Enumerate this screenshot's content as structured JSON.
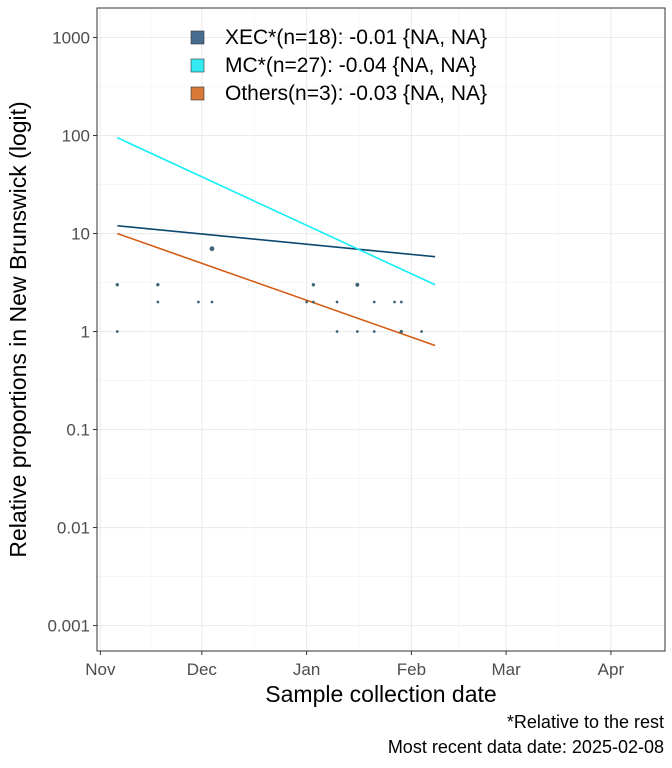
{
  "chart_data": {
    "type": "scatter",
    "xlabel": "Sample collection date",
    "ylabel": "Relative proportions in New Brunswick (logit)",
    "x_ticks": [
      "Nov",
      "Dec",
      "Jan",
      "Feb",
      "Mar",
      "Apr"
    ],
    "x_tick_dates": [
      "2024-11-01",
      "2024-12-01",
      "2025-01-01",
      "2025-02-01",
      "2025-03-01",
      "2025-04-01"
    ],
    "xlim": [
      "2024-10-31",
      "2025-04-17"
    ],
    "y_scale": "log",
    "y_ticks": [
      "0.001",
      "0.01",
      "0.1",
      "1",
      "10",
      "100",
      "1000"
    ],
    "y_tick_values": [
      0.001,
      0.01,
      0.1,
      1,
      10,
      100,
      1000
    ],
    "ylim": [
      0.00055,
      2000
    ],
    "grid": true,
    "legend_position": "top",
    "series": [
      {
        "name": "XEC*(n=18): -0.01 {NA, NA}",
        "color": "#466d8f",
        "line_color": "#0b4870",
        "line": [
          {
            "x": "2024-11-06",
            "y": 12
          },
          {
            "x": "2025-02-08",
            "y": 5.8
          }
        ]
      },
      {
        "name": "MC*(n=27): -0.04 {NA, NA}",
        "color": "#33eaf2",
        "line_color": "#13eef7",
        "line": [
          {
            "x": "2024-11-06",
            "y": 95
          },
          {
            "x": "2025-02-08",
            "y": 3
          }
        ]
      },
      {
        "name": "Others(n=3): -0.03 {NA, NA}",
        "color": "#d77938",
        "line_color": "#d35b12",
        "line": [
          {
            "x": "2024-11-06",
            "y": 10
          },
          {
            "x": "2025-02-08",
            "y": 0.72
          }
        ]
      }
    ],
    "points": [
      {
        "x": "2024-11-06",
        "y": 3,
        "size": 1.5
      },
      {
        "x": "2024-11-06",
        "y": 1,
        "size": 1.2
      },
      {
        "x": "2024-11-18",
        "y": 3,
        "size": 1.5
      },
      {
        "x": "2024-11-18",
        "y": 2,
        "size": 1.2
      },
      {
        "x": "2024-11-30",
        "y": 2,
        "size": 1.2
      },
      {
        "x": "2024-12-04",
        "y": 7,
        "size": 2.2
      },
      {
        "x": "2024-12-04",
        "y": 2,
        "size": 1.2
      },
      {
        "x": "2025-01-01",
        "y": 2,
        "size": 1.2
      },
      {
        "x": "2025-01-03",
        "y": 3,
        "size": 1.5
      },
      {
        "x": "2025-01-03",
        "y": 2,
        "size": 1.2
      },
      {
        "x": "2025-01-10",
        "y": 2,
        "size": 1.2
      },
      {
        "x": "2025-01-10",
        "y": 1,
        "size": 1.2
      },
      {
        "x": "2025-01-16",
        "y": 3,
        "size": 1.8
      },
      {
        "x": "2025-01-16",
        "y": 1,
        "size": 1.2
      },
      {
        "x": "2025-01-21",
        "y": 2,
        "size": 1.2
      },
      {
        "x": "2025-01-21",
        "y": 1,
        "size": 1.2
      },
      {
        "x": "2025-01-27",
        "y": 2,
        "size": 1.2
      },
      {
        "x": "2025-01-29",
        "y": 2,
        "size": 1.2
      },
      {
        "x": "2025-01-29",
        "y": 1,
        "size": 1.5
      },
      {
        "x": "2025-02-04",
        "y": 1,
        "size": 1.2
      }
    ],
    "point_color": "#3d6a7a"
  },
  "caption": {
    "line1": "*Relative to the rest",
    "line2": "Most recent data date: 2025-02-08"
  }
}
